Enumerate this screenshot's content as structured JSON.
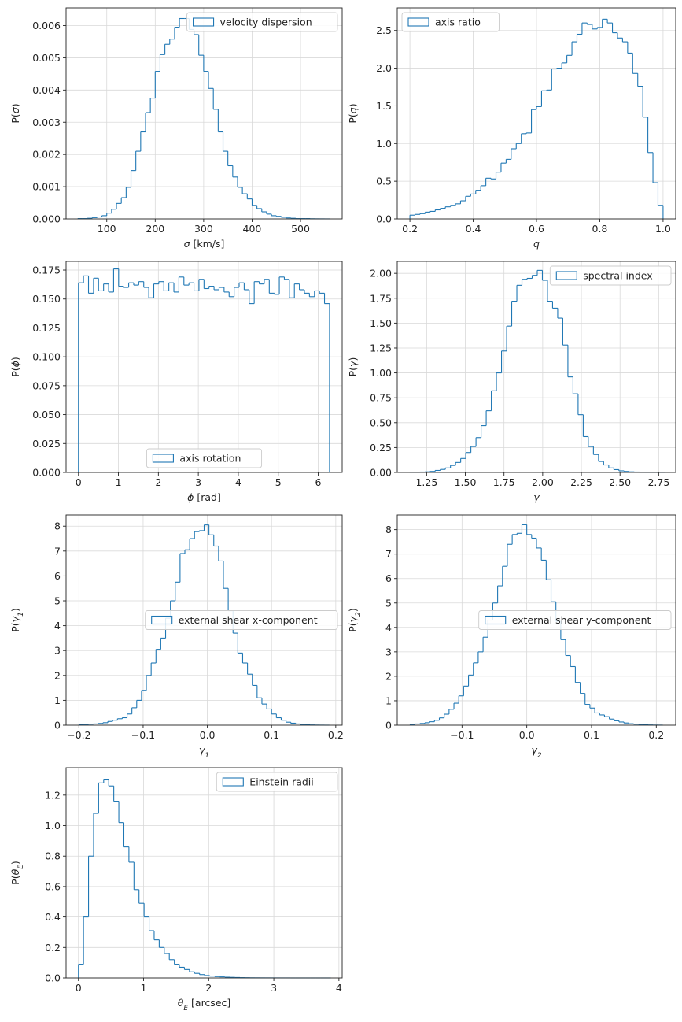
{
  "colors": {
    "hist": "#1f77b4",
    "grid": "#d9d9d9",
    "axis": "#222222"
  },
  "chart_data": [
    {
      "type": "histogram-step",
      "title": "",
      "legend": "velocity dispersion",
      "legend_loc": "upper-right",
      "xlabel": "σ [km/s]",
      "ylabel": "P(σ)",
      "xlim": [
        16,
        586
      ],
      "ylim": [
        0,
        0.00655
      ],
      "xticks": [
        100,
        200,
        300,
        400,
        500
      ],
      "xtick_labels": [
        "100",
        "200",
        "300",
        "400",
        "500"
      ],
      "yticks": [
        0,
        0.001,
        0.002,
        0.003,
        0.004,
        0.005,
        0.006
      ],
      "ytick_labels": [
        "0.000",
        "0.001",
        "0.002",
        "0.003",
        "0.004",
        "0.005",
        "0.006"
      ],
      "bin_edges": [
        40,
        50,
        60,
        70,
        80,
        90,
        100,
        110,
        120,
        130,
        140,
        150,
        160,
        170,
        180,
        190,
        200,
        210,
        220,
        230,
        240,
        250,
        260,
        270,
        280,
        290,
        300,
        310,
        320,
        330,
        340,
        350,
        360,
        370,
        380,
        390,
        400,
        410,
        420,
        430,
        440,
        450,
        460,
        470,
        480,
        490,
        500,
        510,
        520,
        530,
        540,
        550,
        560
      ],
      "values": [
        1e-05,
        1e-05,
        2e-05,
        4e-05,
        6e-05,
        0.0001,
        0.00018,
        0.0003,
        0.00048,
        0.00066,
        0.00098,
        0.0015,
        0.0021,
        0.0027,
        0.0033,
        0.00375,
        0.00458,
        0.0051,
        0.00542,
        0.00558,
        0.00595,
        0.00622,
        0.00622,
        0.00588,
        0.00572,
        0.00508,
        0.00458,
        0.00405,
        0.0034,
        0.0027,
        0.0021,
        0.00165,
        0.0013,
        0.00098,
        0.00078,
        0.00062,
        0.00042,
        0.00032,
        0.00022,
        0.00015,
        0.0001,
        8e-05,
        5e-05,
        3e-05,
        2e-05,
        1e-05,
        1e-05,
        1e-05,
        5e-06,
        3e-06,
        2e-06,
        1e-06
      ]
    },
    {
      "type": "histogram-step",
      "legend": "axis ratio",
      "legend_loc": "upper-left",
      "xlabel": "q",
      "ylabel": "P(q)",
      "xlim": [
        0.16,
        1.04
      ],
      "ylim": [
        0,
        2.8
      ],
      "xticks": [
        0.2,
        0.4,
        0.6,
        0.8,
        1.0
      ],
      "xtick_labels": [
        "0.2",
        "0.4",
        "0.6",
        "0.8",
        "1.0"
      ],
      "yticks": [
        0,
        0.5,
        1.0,
        1.5,
        2.0,
        2.5
      ],
      "ytick_labels": [
        "0.0",
        "0.5",
        "1.0",
        "1.5",
        "2.0",
        "2.5"
      ],
      "bin_edges": [
        0.2,
        0.216,
        0.232,
        0.248,
        0.264,
        0.28,
        0.296,
        0.312,
        0.328,
        0.344,
        0.36,
        0.376,
        0.392,
        0.408,
        0.424,
        0.44,
        0.456,
        0.472,
        0.488,
        0.504,
        0.52,
        0.536,
        0.552,
        0.568,
        0.584,
        0.6,
        0.616,
        0.632,
        0.648,
        0.664,
        0.68,
        0.696,
        0.712,
        0.728,
        0.744,
        0.76,
        0.776,
        0.792,
        0.808,
        0.824,
        0.84,
        0.856,
        0.872,
        0.888,
        0.904,
        0.92,
        0.936,
        0.952,
        0.968,
        0.984,
        1.0
      ],
      "values": [
        0.05,
        0.06,
        0.07,
        0.09,
        0.1,
        0.12,
        0.14,
        0.16,
        0.18,
        0.2,
        0.24,
        0.3,
        0.33,
        0.38,
        0.44,
        0.54,
        0.53,
        0.62,
        0.74,
        0.79,
        0.93,
        1.0,
        1.13,
        1.14,
        1.45,
        1.49,
        1.7,
        1.71,
        1.99,
        2.0,
        2.07,
        2.17,
        2.35,
        2.45,
        2.6,
        2.58,
        2.52,
        2.54,
        2.65,
        2.6,
        2.47,
        2.4,
        2.35,
        2.2,
        1.93,
        1.76,
        1.35,
        0.88,
        0.48,
        0.18
      ]
    },
    {
      "type": "histogram-step",
      "legend": "axis rotation",
      "legend_loc": "lower-center",
      "xlabel": "ϕ [rad]",
      "ylabel": "P(ϕ)",
      "xlim": [
        -0.31,
        6.6
      ],
      "ylim": [
        0,
        0.1825
      ],
      "xticks": [
        0,
        1,
        2,
        3,
        4,
        5,
        6
      ],
      "xtick_labels": [
        "0",
        "1",
        "2",
        "3",
        "4",
        "5",
        "6"
      ],
      "yticks": [
        0,
        0.025,
        0.05,
        0.075,
        0.1,
        0.125,
        0.15,
        0.175
      ],
      "ytick_labels": [
        "0.000",
        "0.025",
        "0.050",
        "0.075",
        "0.100",
        "0.125",
        "0.150",
        "0.175"
      ],
      "bin_edges": [
        0,
        0.1257,
        0.2513,
        0.377,
        0.5027,
        0.6283,
        0.754,
        0.8796,
        1.0053,
        1.131,
        1.2566,
        1.3823,
        1.508,
        1.6336,
        1.7593,
        1.885,
        2.0106,
        2.1363,
        2.2619,
        2.3876,
        2.5133,
        2.6389,
        2.7646,
        2.8903,
        3.0159,
        3.1416,
        3.2673,
        3.3929,
        3.5186,
        3.6442,
        3.7699,
        3.8956,
        4.0212,
        4.1469,
        4.2726,
        4.3982,
        4.5239,
        4.6496,
        4.7752,
        4.9009,
        5.0265,
        5.1522,
        5.2779,
        5.4035,
        5.5292,
        5.6549,
        5.7805,
        5.9062,
        6.0319,
        6.1575,
        6.2832
      ],
      "values": [
        0.164,
        0.17,
        0.155,
        0.168,
        0.157,
        0.163,
        0.156,
        0.176,
        0.161,
        0.16,
        0.164,
        0.162,
        0.165,
        0.16,
        0.151,
        0.163,
        0.165,
        0.157,
        0.164,
        0.156,
        0.169,
        0.162,
        0.164,
        0.157,
        0.167,
        0.159,
        0.161,
        0.158,
        0.16,
        0.156,
        0.152,
        0.16,
        0.164,
        0.158,
        0.146,
        0.165,
        0.163,
        0.167,
        0.155,
        0.154,
        0.169,
        0.167,
        0.151,
        0.163,
        0.158,
        0.155,
        0.152,
        0.157,
        0.155,
        0.146
      ]
    },
    {
      "type": "histogram-step",
      "legend": "spectral index",
      "legend_loc": "upper-right",
      "xlabel": "γ",
      "ylabel": "P(γ)",
      "xlim": [
        1.06,
        2.86
      ],
      "ylim": [
        0,
        2.12
      ],
      "xticks": [
        1.25,
        1.5,
        1.75,
        2.0,
        2.25,
        2.5,
        2.75
      ],
      "xtick_labels": [
        "1.25",
        "1.50",
        "1.75",
        "2.00",
        "2.25",
        "2.50",
        "2.75"
      ],
      "yticks": [
        0,
        0.25,
        0.5,
        0.75,
        1.0,
        1.25,
        1.5,
        1.75,
        2.0
      ],
      "ytick_labels": [
        "0.00",
        "0.25",
        "0.50",
        "0.75",
        "1.00",
        "1.25",
        "1.50",
        "1.75",
        "2.00"
      ],
      "bin_edges": [
        1.14,
        1.173,
        1.206,
        1.239,
        1.272,
        1.305,
        1.338,
        1.371,
        1.404,
        1.437,
        1.47,
        1.503,
        1.536,
        1.569,
        1.602,
        1.635,
        1.668,
        1.701,
        1.734,
        1.767,
        1.8,
        1.833,
        1.866,
        1.899,
        1.932,
        1.965,
        1.998,
        2.031,
        2.064,
        2.097,
        2.13,
        2.163,
        2.196,
        2.229,
        2.262,
        2.295,
        2.328,
        2.361,
        2.394,
        2.427,
        2.46,
        2.493,
        2.526,
        2.559,
        2.592,
        2.625,
        2.658,
        2.691,
        2.724,
        2.757,
        2.79
      ],
      "values": [
        0.002,
        0.002,
        0.004,
        0.006,
        0.01,
        0.02,
        0.03,
        0.045,
        0.07,
        0.1,
        0.14,
        0.2,
        0.26,
        0.35,
        0.47,
        0.62,
        0.82,
        1.0,
        1.22,
        1.47,
        1.72,
        1.88,
        1.94,
        1.95,
        1.98,
        2.03,
        1.93,
        1.72,
        1.65,
        1.55,
        1.28,
        0.96,
        0.79,
        0.58,
        0.36,
        0.26,
        0.18,
        0.11,
        0.075,
        0.045,
        0.028,
        0.016,
        0.01,
        0.006,
        0.004,
        0.002,
        0.001,
        0.001,
        0.001,
        0.0005
      ]
    },
    {
      "type": "histogram-step",
      "legend": "external shear x-component",
      "legend_loc": "center-right",
      "xlabel": "γ₁",
      "ylabel": "P(γ₁)",
      "xlim": [
        -0.22,
        0.21
      ],
      "ylim": [
        0,
        8.45
      ],
      "xticks": [
        -0.2,
        -0.1,
        0.0,
        0.1,
        0.2
      ],
      "xtick_labels": [
        "−0.2",
        "−0.1",
        "0.0",
        "0.1",
        "0.2"
      ],
      "yticks": [
        0,
        1,
        2,
        3,
        4,
        5,
        6,
        7,
        8
      ],
      "ytick_labels": [
        "0",
        "1",
        "2",
        "3",
        "4",
        "5",
        "6",
        "7",
        "8"
      ],
      "bin_edges": [
        -0.2,
        -0.1925,
        -0.185,
        -0.1775,
        -0.17,
        -0.1625,
        -0.155,
        -0.1475,
        -0.14,
        -0.1325,
        -0.125,
        -0.1175,
        -0.11,
        -0.1025,
        -0.095,
        -0.0875,
        -0.08,
        -0.0725,
        -0.065,
        -0.0575,
        -0.05,
        -0.0425,
        -0.035,
        -0.0275,
        -0.02,
        -0.0125,
        -0.005,
        0.0025,
        0.01,
        0.0175,
        0.025,
        0.0325,
        0.04,
        0.0475,
        0.055,
        0.0625,
        0.07,
        0.0775,
        0.085,
        0.0925,
        0.1,
        0.1075,
        0.115,
        0.1225,
        0.13,
        0.1375,
        0.145,
        0.1525,
        0.16,
        0.1675,
        0.175,
        0.1825,
        0.19
      ],
      "values": [
        0.02,
        0.03,
        0.04,
        0.05,
        0.07,
        0.1,
        0.15,
        0.2,
        0.26,
        0.3,
        0.45,
        0.7,
        1.0,
        1.4,
        2.0,
        2.5,
        3.05,
        3.5,
        4.3,
        5.0,
        5.75,
        6.9,
        7.05,
        7.5,
        7.78,
        7.82,
        8.05,
        7.65,
        7.2,
        6.6,
        5.5,
        4.6,
        3.7,
        2.9,
        2.5,
        2.05,
        1.6,
        1.1,
        0.85,
        0.65,
        0.45,
        0.3,
        0.2,
        0.12,
        0.08,
        0.05,
        0.03,
        0.02,
        0.01,
        0.005,
        0.003,
        0.001
      ]
    },
    {
      "type": "histogram-step",
      "legend": "external shear y-component",
      "legend_loc": "center-right",
      "xlabel": "γ₂",
      "ylabel": "P(γ₂)",
      "xlim": [
        -0.2,
        0.23
      ],
      "ylim": [
        0,
        8.6
      ],
      "xticks": [
        -0.1,
        0.0,
        0.1,
        0.2
      ],
      "xtick_labels": [
        "−0.1",
        "0.0",
        "0.1",
        "0.2"
      ],
      "yticks": [
        0,
        1,
        2,
        3,
        4,
        5,
        6,
        7,
        8
      ],
      "ytick_labels": [
        "0",
        "1",
        "2",
        "3",
        "4",
        "5",
        "6",
        "7",
        "8"
      ],
      "bin_edges": [
        -0.18,
        -0.1725,
        -0.165,
        -0.1575,
        -0.15,
        -0.1425,
        -0.135,
        -0.1275,
        -0.12,
        -0.1125,
        -0.105,
        -0.0975,
        -0.09,
        -0.0825,
        -0.075,
        -0.0675,
        -0.06,
        -0.0525,
        -0.045,
        -0.0375,
        -0.03,
        -0.0225,
        -0.015,
        -0.0075,
        0.0,
        0.0075,
        0.015,
        0.0225,
        0.03,
        0.0375,
        0.045,
        0.0525,
        0.06,
        0.0675,
        0.075,
        0.0825,
        0.09,
        0.0975,
        0.105,
        0.1125,
        0.12,
        0.1275,
        0.135,
        0.1425,
        0.15,
        0.1575,
        0.165,
        0.1725,
        0.18,
        0.1875,
        0.195,
        0.2025,
        0.21
      ],
      "values": [
        0.03,
        0.05,
        0.07,
        0.1,
        0.14,
        0.2,
        0.3,
        0.45,
        0.65,
        0.9,
        1.2,
        1.6,
        2.05,
        2.55,
        3.0,
        3.6,
        4.3,
        5.0,
        5.7,
        6.5,
        7.4,
        7.8,
        7.85,
        8.2,
        7.8,
        7.65,
        7.25,
        6.75,
        5.95,
        5.05,
        4.25,
        3.5,
        2.85,
        2.4,
        1.75,
        1.3,
        0.85,
        0.7,
        0.5,
        0.42,
        0.35,
        0.25,
        0.18,
        0.13,
        0.09,
        0.06,
        0.04,
        0.03,
        0.02,
        0.01,
        0.005,
        0.003
      ]
    },
    {
      "type": "histogram-step",
      "legend": "Einstein radii",
      "legend_loc": "upper-right",
      "xlabel": "θ_E [arcsec]",
      "ylabel": "P(θ_E)",
      "xlim": [
        -0.19,
        4.05
      ],
      "ylim": [
        0,
        1.38
      ],
      "xticks": [
        0,
        1,
        2,
        3,
        4
      ],
      "xtick_labels": [
        "0",
        "1",
        "2",
        "3",
        "4"
      ],
      "yticks": [
        0,
        0.2,
        0.4,
        0.6,
        0.8,
        1.0,
        1.2
      ],
      "ytick_labels": [
        "0.0",
        "0.2",
        "0.4",
        "0.6",
        "0.8",
        "1.0",
        "1.2"
      ],
      "bin_edges": [
        0.0,
        0.0775,
        0.155,
        0.2325,
        0.31,
        0.3875,
        0.465,
        0.5425,
        0.62,
        0.6975,
        0.775,
        0.8525,
        0.93,
        1.0075,
        1.085,
        1.1625,
        1.24,
        1.3175,
        1.395,
        1.4725,
        1.55,
        1.6275,
        1.705,
        1.7825,
        1.86,
        1.9375,
        2.015,
        2.0925,
        2.17,
        2.2475,
        2.325,
        2.4025,
        2.48,
        2.5575,
        2.635,
        2.7125,
        2.79,
        2.8675,
        2.945,
        3.0225,
        3.1,
        3.1775,
        3.255,
        3.3325,
        3.41,
        3.4875,
        3.565,
        3.6425,
        3.72,
        3.7975,
        3.875
      ],
      "values": [
        0.09,
        0.4,
        0.8,
        1.08,
        1.28,
        1.3,
        1.26,
        1.16,
        1.02,
        0.86,
        0.76,
        0.58,
        0.49,
        0.4,
        0.31,
        0.25,
        0.2,
        0.16,
        0.12,
        0.09,
        0.07,
        0.055,
        0.04,
        0.03,
        0.022,
        0.016,
        0.012,
        0.009,
        0.007,
        0.005,
        0.004,
        0.003,
        0.002,
        0.0015,
        0.001,
        0.0008,
        0.0006,
        0.0005,
        0.0004,
        0.0003,
        0.0002,
        0.0002,
        0.0001,
        0.0001,
        0.0001,
        0.0001,
        0.0001,
        0.0001,
        0.0001,
        0.0001
      ]
    }
  ]
}
